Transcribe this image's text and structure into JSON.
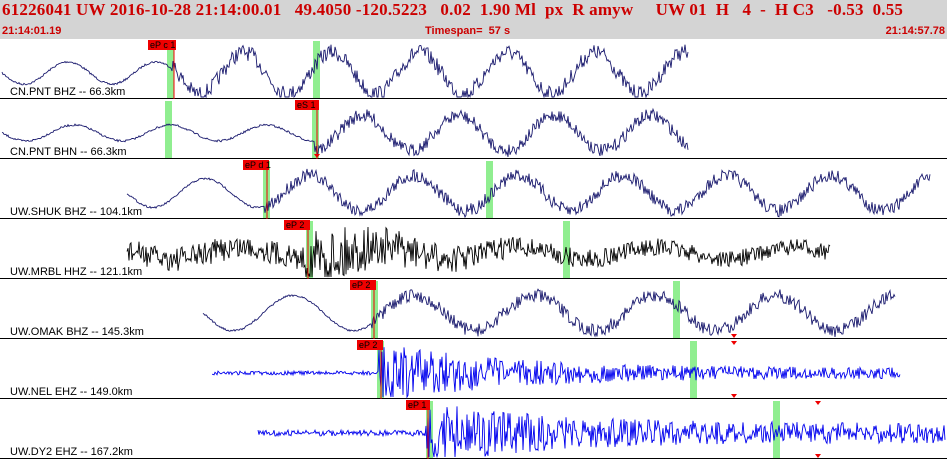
{
  "header": {
    "title": "61226041 UW 2016-10-28 21:14:00.01   49.4050 -120.5223   0.02  1.90 Ml  px  R amyw     UW 01  H   4  -  H C3   -0.53  0.55",
    "start_time": "21:14:01.19",
    "timespan": "Timespan=  57 s",
    "end_time": "21:14:57.78"
  },
  "colors": {
    "header_bg": "#d4d4d4",
    "header_text": "#cc0000",
    "trace_navy": "#1a1a6e",
    "trace_black": "#000000",
    "trace_blue": "#0000ee",
    "pick_flag": "#ee0000",
    "window_green": "#90ee90"
  },
  "traces": [
    {
      "label": "CN.PNT BHZ -- 66.3km",
      "color": "navy",
      "pick": "eP c 1",
      "kind": "teleseismic"
    },
    {
      "label": "CN.PNT BHN -- 66.3km",
      "color": "navy",
      "pick": "eS 1",
      "kind": "teleseismic"
    },
    {
      "label": "UW.SHUK BHZ -- 104.1km",
      "color": "navy",
      "pick": "eP d 1",
      "kind": "teleseismic"
    },
    {
      "label": "UW.MRBL HHZ -- 121.1km",
      "color": "black",
      "pick": "eP 2",
      "kind": "noisy"
    },
    {
      "label": "UW.OMAK BHZ -- 145.3km",
      "color": "navy",
      "pick": "eP 2",
      "kind": "teleseismic"
    },
    {
      "label": "UW.NEL EHZ -- 149.0km",
      "color": "blue",
      "pick": "eP 2",
      "kind": "burst"
    },
    {
      "label": "UW.DY2 EHZ -- 167.2km",
      "color": "blue",
      "pick": "eP 1",
      "kind": "burst"
    }
  ]
}
